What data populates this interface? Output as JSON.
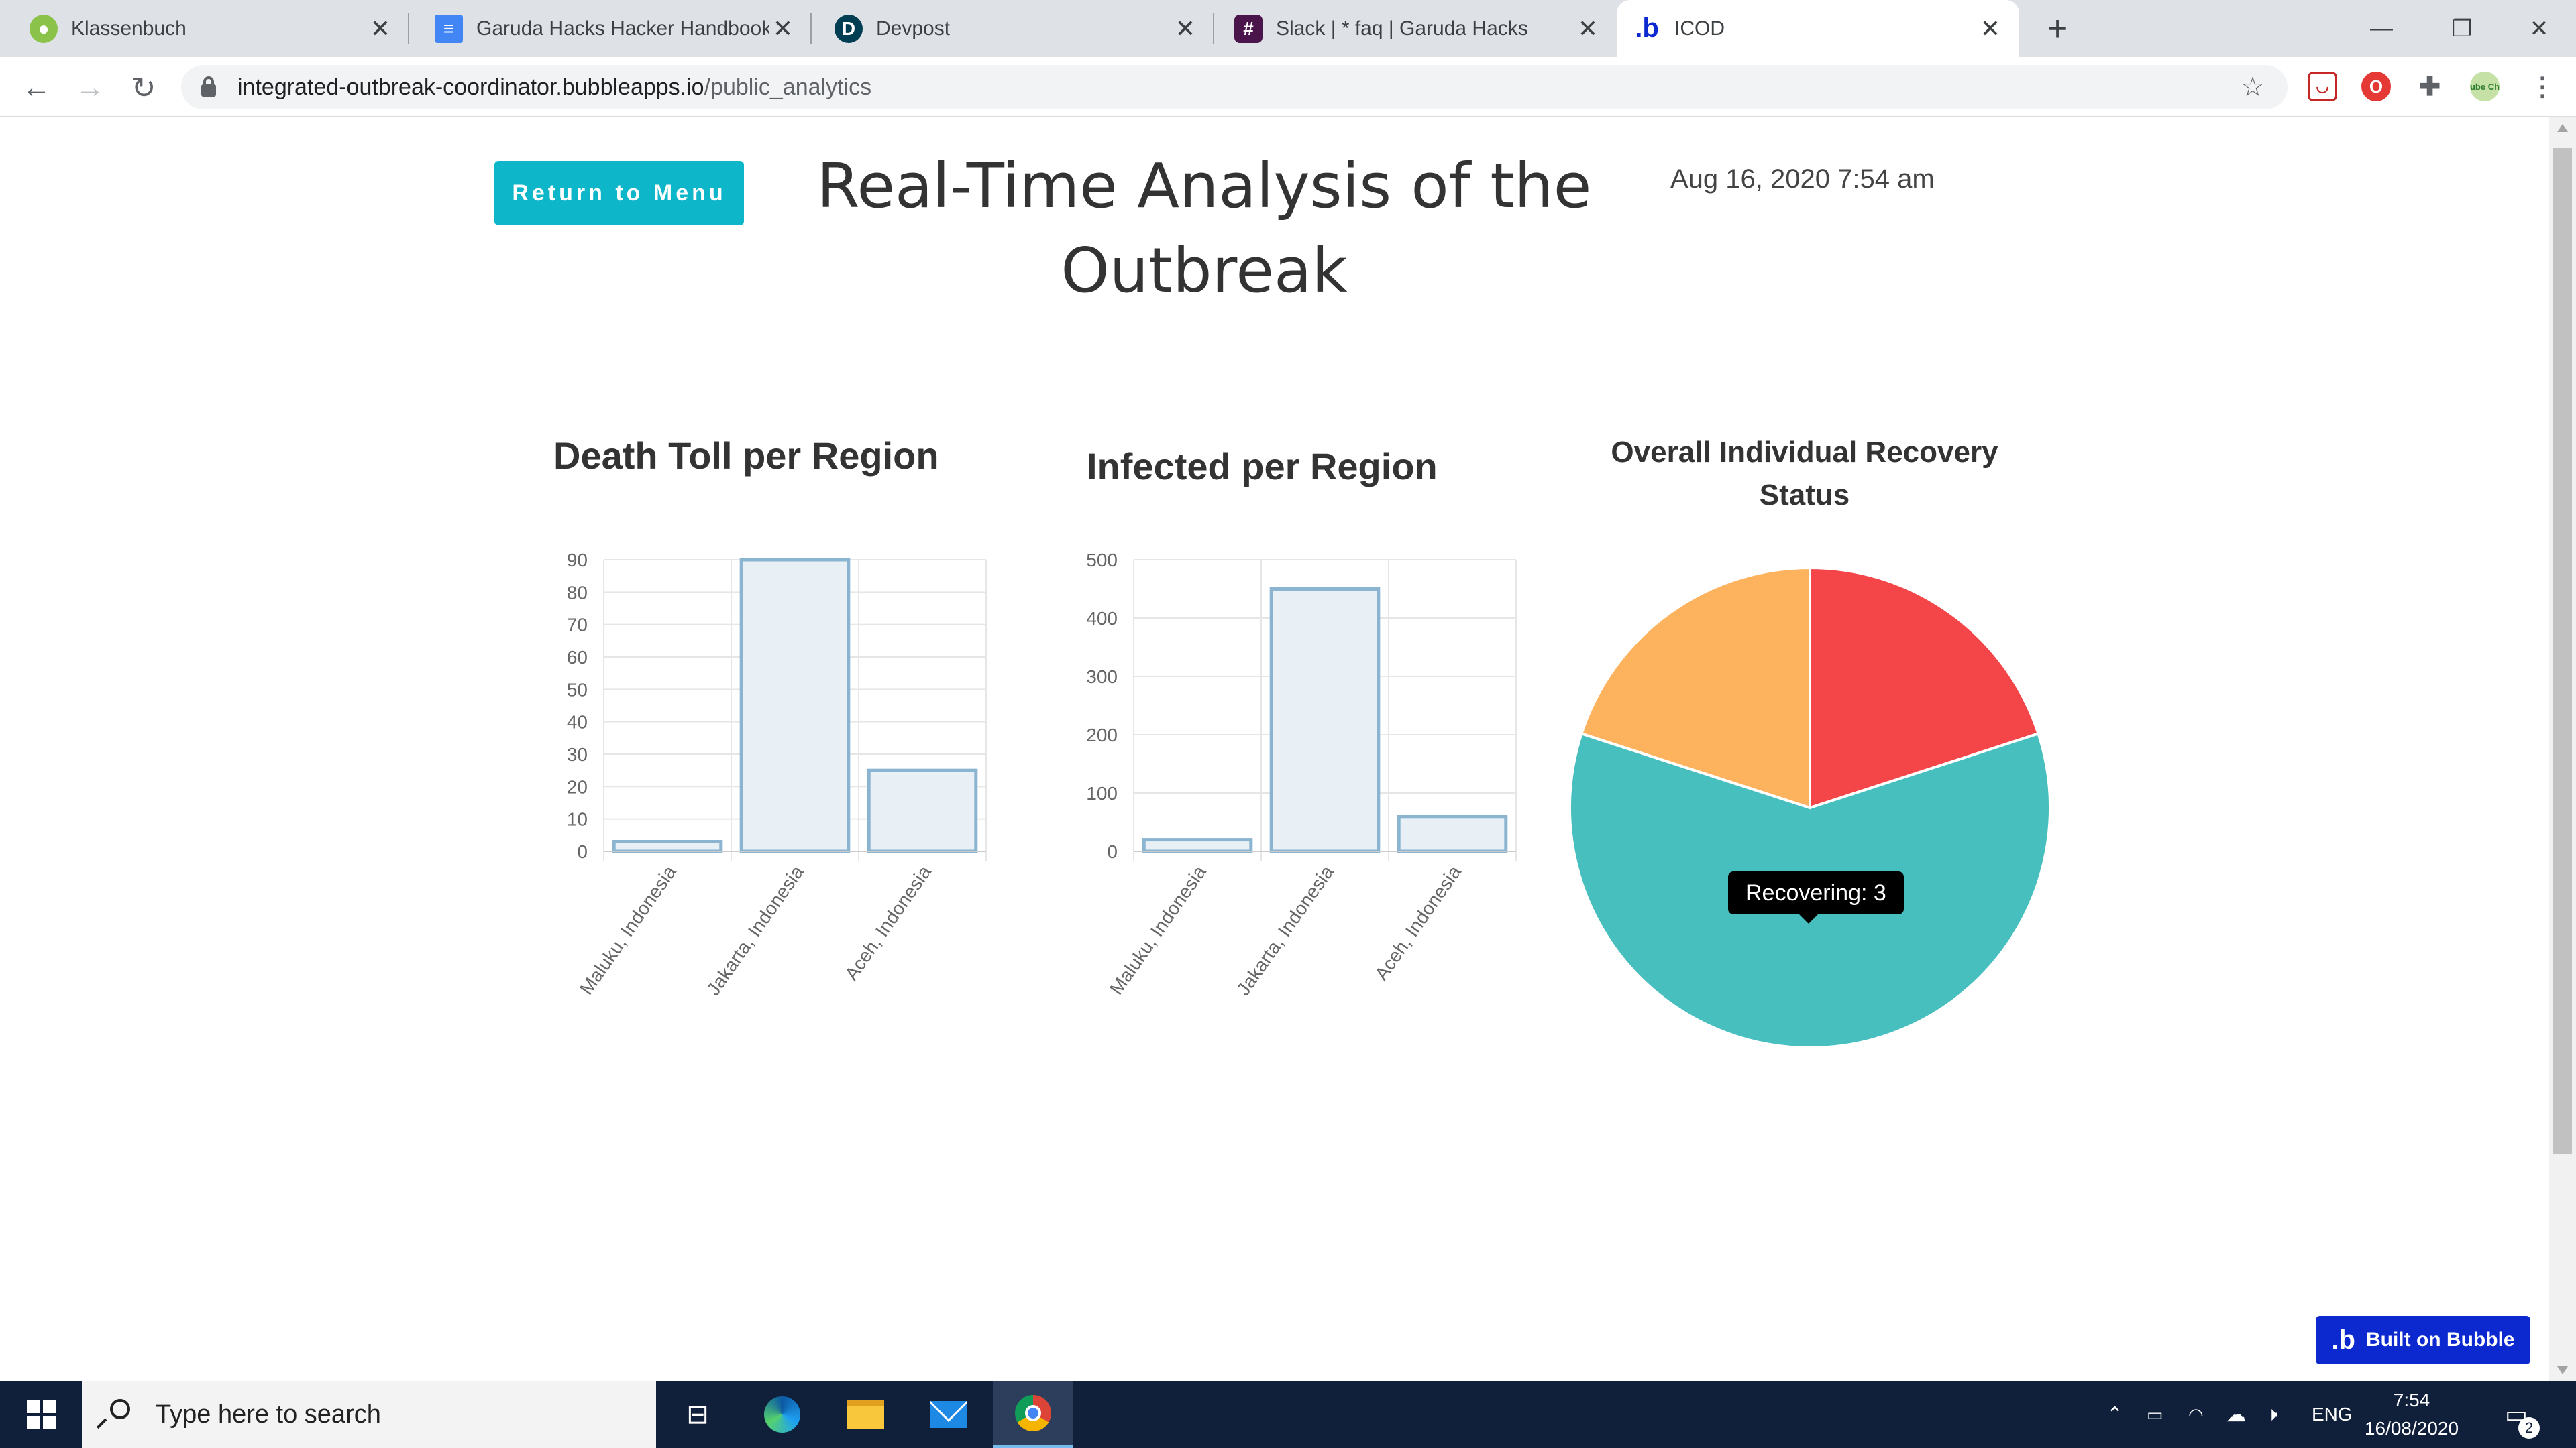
{
  "browser": {
    "tabs": [
      {
        "title": "Klassenbuch",
        "icon": "klassenbuch-icon",
        "active": false
      },
      {
        "title": "Garuda Hacks Hacker Handbook",
        "icon": "google-docs-icon",
        "active": false
      },
      {
        "title": "Devpost",
        "icon": "devpost-icon",
        "active": false
      },
      {
        "title": "Slack | * faq | Garuda Hacks",
        "icon": "slack-icon",
        "active": false
      },
      {
        "title": "ICOD",
        "icon": "bubble-icon",
        "active": true
      }
    ],
    "url_host": "integrated-outbreak-coordinator.bubbleapps.io",
    "url_path": "/public_analytics",
    "ext_badge": "ube Ch"
  },
  "page": {
    "return_button": "Return to Menu",
    "title": "Real-Time Analysis of the Outbreak",
    "date": "Aug 16, 2020 7:54 am"
  },
  "charts": {
    "death_title": "Death Toll per Region",
    "infected_title": "Infected per Region",
    "recovery_title": "Overall Individual Recovery Status"
  },
  "chart_data": [
    {
      "type": "bar",
      "title": "Death Toll per Region",
      "categories": [
        "Maluku, Indonesia",
        "Jakarta, Indonesia",
        "Aceh, Indonesia"
      ],
      "values": [
        3,
        90,
        25
      ],
      "ylim": [
        0,
        90
      ],
      "yticks": [
        0,
        10,
        20,
        30,
        40,
        50,
        60,
        70,
        80,
        90
      ],
      "bar_fill": "#e8f0f6",
      "bar_stroke": "#8ab4d0",
      "grid": true
    },
    {
      "type": "bar",
      "title": "Infected per Region",
      "categories": [
        "Maluku, Indonesia",
        "Jakarta, Indonesia",
        "Aceh, Indonesia"
      ],
      "values": [
        20,
        450,
        60
      ],
      "ylim": [
        0,
        500
      ],
      "yticks": [
        0,
        100,
        200,
        300,
        400,
        500
      ],
      "bar_fill": "#e8f0f6",
      "bar_stroke": "#8ab4d0",
      "grid": true
    },
    {
      "type": "pie",
      "title": "Overall Individual Recovery Status",
      "slices": [
        {
          "value": 1,
          "color": "#f44549"
        },
        {
          "label": "Recovering",
          "value": 3,
          "color": "#47bfbe"
        },
        {
          "value": 1,
          "color": "#fdb25d"
        }
      ],
      "tooltip": "Recovering: 3"
    }
  ],
  "badge": {
    "text": "Built on Bubble",
    "color": "#0c29d0"
  },
  "taskbar": {
    "search_placeholder": "Type here to search",
    "language": "ENG",
    "time": "7:54",
    "date": "16/08/2020",
    "notification_count": "2"
  }
}
